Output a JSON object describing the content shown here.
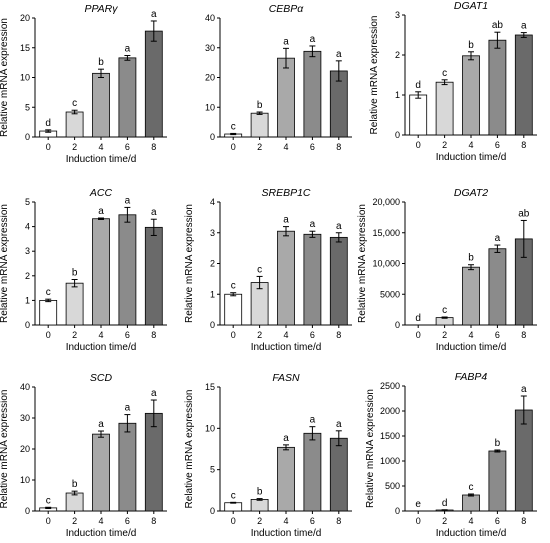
{
  "chart_data": [
    {
      "type": "bar",
      "title": "PPARγ",
      "ylabel": "Relative  mRNA expression",
      "xlabel": "Induction time/d",
      "categories": [
        "0",
        "2",
        "4",
        "6",
        "8"
      ],
      "ylim": [
        0,
        20
      ],
      "yticks": [
        "0",
        "5",
        "10",
        "15",
        "20"
      ],
      "values": [
        1,
        4.2,
        10.7,
        13.3,
        17.8
      ],
      "errors": [
        0.2,
        0.3,
        0.7,
        0.4,
        1.7
      ],
      "labels": [
        "d",
        "c",
        "b",
        "a",
        "a"
      ]
    },
    {
      "type": "bar",
      "title": "CEBPα",
      "ylabel": "",
      "xlabel": "",
      "categories": [
        "0",
        "2",
        "4",
        "6",
        "8"
      ],
      "ylim": [
        0,
        40
      ],
      "yticks": [
        "0",
        "10",
        "20",
        "30",
        "40"
      ],
      "values": [
        1,
        8,
        26.5,
        28.8,
        22.2
      ],
      "errors": [
        0.2,
        0.4,
        3.3,
        1.8,
        3.4
      ],
      "labels": [
        "c",
        "b",
        "a",
        "a",
        "a"
      ]
    },
    {
      "type": "bar",
      "title": "DGAT1",
      "ylabel": "Relative  mRNA expression",
      "xlabel": "Induction time/d",
      "categories": [
        "0",
        "2",
        "4",
        "6",
        "8"
      ],
      "ylim": [
        0,
        3
      ],
      "yticks": [
        "0",
        "1",
        "2",
        "3"
      ],
      "values": [
        1,
        1.32,
        1.98,
        2.37,
        2.5
      ],
      "errors": [
        0.08,
        0.06,
        0.1,
        0.2,
        0.06
      ],
      "labels": [
        "d",
        "c",
        "b",
        "ab",
        "a"
      ]
    },
    {
      "type": "bar",
      "title": "ACC",
      "ylabel": "Relative  mRNA expression",
      "xlabel": "Induction time/d",
      "categories": [
        "0",
        "2",
        "4",
        "6",
        "8"
      ],
      "ylim": [
        0,
        5
      ],
      "yticks": [
        "0",
        "1",
        "2",
        "3",
        "4",
        "5"
      ],
      "values": [
        1,
        1.7,
        4.32,
        4.48,
        3.97
      ],
      "errors": [
        0.05,
        0.15,
        0.03,
        0.3,
        0.33
      ],
      "labels": [
        "c",
        "b",
        "a",
        "a",
        "a"
      ]
    },
    {
      "type": "bar",
      "title": "SREBP1C",
      "ylabel": "Relative  mRNA expression",
      "xlabel": "Induction time/d",
      "categories": [
        "0",
        "2",
        "4",
        "6",
        "8"
      ],
      "ylim": [
        0,
        4
      ],
      "yticks": [
        "0",
        "1",
        "2",
        "3",
        "4"
      ],
      "values": [
        1,
        1.38,
        3.05,
        2.95,
        2.85
      ],
      "errors": [
        0.05,
        0.2,
        0.15,
        0.1,
        0.15
      ],
      "labels": [
        "c",
        "c",
        "a",
        "a",
        "a"
      ]
    },
    {
      "type": "bar",
      "title": "DGAT2",
      "ylabel": "Relative  mRNA expression",
      "xlabel": "Induction time/d",
      "categories": [
        "0",
        "2",
        "4",
        "6",
        "8"
      ],
      "ylim": [
        0,
        20000
      ],
      "yticks": [
        "0",
        "5000",
        "10,000",
        "15,000",
        "20,000"
      ],
      "values": [
        0,
        1200,
        9400,
        12400,
        14000
      ],
      "errors": [
        0,
        100,
        400,
        600,
        3000
      ],
      "labels": [
        "d",
        "c",
        "b",
        "a",
        "ab"
      ]
    },
    {
      "type": "bar",
      "title": "SCD",
      "ylabel": "Relative  mRNA expression",
      "xlabel": "Induction time/d",
      "categories": [
        "0",
        "2",
        "4",
        "6",
        "8"
      ],
      "ylim": [
        0,
        40
      ],
      "yticks": [
        "0",
        "10",
        "20",
        "30",
        "40"
      ],
      "values": [
        1,
        5.8,
        24.8,
        28.3,
        31.5
      ],
      "errors": [
        0.2,
        0.6,
        1,
        2.8,
        4.3
      ],
      "labels": [
        "c",
        "b",
        "a",
        "a",
        "a"
      ]
    },
    {
      "type": "bar",
      "title": "FASN",
      "ylabel": "Relative  mRNA expression",
      "xlabel": "Induction time/d",
      "categories": [
        "0",
        "2",
        "4",
        "6",
        "8"
      ],
      "ylim": [
        0,
        15
      ],
      "yticks": [
        "0",
        "5",
        "10",
        "15"
      ],
      "values": [
        1,
        1.4,
        7.7,
        9.4,
        8.8
      ],
      "errors": [
        0.05,
        0.1,
        0.3,
        0.8,
        0.9
      ],
      "labels": [
        "c",
        "b",
        "a",
        "a",
        "a"
      ]
    },
    {
      "type": "bar",
      "title": "FABP4",
      "ylabel": "Relative  mRNA expression",
      "xlabel": "Induction time/d",
      "categories": [
        "0",
        "2",
        "4",
        "6",
        "8"
      ],
      "ylim": [
        0,
        2500
      ],
      "yticks": [
        "0",
        "500",
        "1000",
        "1500",
        "2000",
        "2500"
      ],
      "values": [
        1,
        20,
        320,
        1200,
        2020
      ],
      "errors": [
        0,
        5,
        20,
        20,
        280
      ],
      "labels": [
        "e",
        "d",
        "c",
        "b",
        "a"
      ]
    }
  ],
  "colors": {
    "bars": [
      "#ffffff",
      "#d8d8d8",
      "#a9a9a9",
      "#8b8b8b",
      "#6a6a6a"
    ],
    "axis": "#000000"
  }
}
